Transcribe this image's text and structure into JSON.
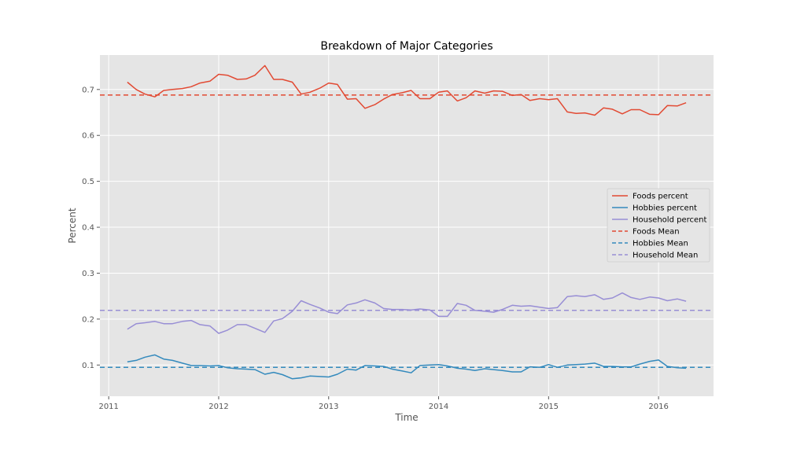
{
  "chart_data": {
    "type": "line",
    "title": "Breakdown of Major Categories",
    "xlabel": "Time",
    "ylabel": "Percent",
    "xlim": [
      2010.92,
      2016.5
    ],
    "ylim": [
      0.032,
      0.775
    ],
    "x_ticks": [
      2011,
      2012,
      2013,
      2014,
      2015,
      2016
    ],
    "x_tick_labels": [
      "2011",
      "2012",
      "2013",
      "2014",
      "2015",
      "2016"
    ],
    "y_ticks": [
      0.1,
      0.2,
      0.3,
      0.4,
      0.5,
      0.6,
      0.7
    ],
    "y_tick_labels": [
      "0.1",
      "0.2",
      "0.3",
      "0.4",
      "0.5",
      "0.6",
      "0.7"
    ],
    "grid": true,
    "legend_position": "center-right",
    "x": [
      2011.17,
      2011.25,
      2011.33,
      2011.42,
      2011.5,
      2011.58,
      2011.67,
      2011.75,
      2011.83,
      2011.92,
      2012.0,
      2012.08,
      2012.17,
      2012.25,
      2012.33,
      2012.42,
      2012.5,
      2012.58,
      2012.67,
      2012.75,
      2012.83,
      2012.92,
      2013.0,
      2013.08,
      2013.17,
      2013.25,
      2013.33,
      2013.42,
      2013.5,
      2013.58,
      2013.67,
      2013.75,
      2013.83,
      2013.92,
      2014.0,
      2014.08,
      2014.17,
      2014.25,
      2014.33,
      2014.42,
      2014.5,
      2014.58,
      2014.67,
      2014.75,
      2014.83,
      2014.92,
      2015.0,
      2015.08,
      2015.17,
      2015.25,
      2015.33,
      2015.42,
      2015.5,
      2015.58,
      2015.67,
      2015.75,
      2015.83,
      2015.92,
      2016.0,
      2016.08,
      2016.17,
      2016.25
    ],
    "series": [
      {
        "name": "Foods percent",
        "color": "#E24A33",
        "style": "solid",
        "values": [
          0.716,
          0.7,
          0.69,
          0.684,
          0.698,
          0.7,
          0.702,
          0.706,
          0.714,
          0.718,
          0.733,
          0.731,
          0.722,
          0.723,
          0.731,
          0.752,
          0.722,
          0.722,
          0.716,
          0.69,
          0.694,
          0.703,
          0.714,
          0.711,
          0.679,
          0.68,
          0.659,
          0.667,
          0.679,
          0.689,
          0.693,
          0.698,
          0.68,
          0.68,
          0.694,
          0.697,
          0.675,
          0.682,
          0.697,
          0.692,
          0.697,
          0.696,
          0.687,
          0.689,
          0.676,
          0.68,
          0.678,
          0.68,
          0.651,
          0.648,
          0.649,
          0.644,
          0.66,
          0.657,
          0.647,
          0.656,
          0.656,
          0.646,
          0.645,
          0.665,
          0.664,
          0.671
        ]
      },
      {
        "name": "Hobbies percent",
        "color": "#348ABD",
        "style": "solid",
        "values": [
          0.107,
          0.11,
          0.117,
          0.122,
          0.113,
          0.11,
          0.104,
          0.099,
          0.099,
          0.098,
          0.099,
          0.094,
          0.092,
          0.091,
          0.09,
          0.08,
          0.084,
          0.079,
          0.07,
          0.072,
          0.076,
          0.075,
          0.074,
          0.08,
          0.091,
          0.089,
          0.099,
          0.098,
          0.097,
          0.091,
          0.087,
          0.083,
          0.099,
          0.1,
          0.101,
          0.098,
          0.093,
          0.091,
          0.088,
          0.092,
          0.09,
          0.088,
          0.085,
          0.085,
          0.096,
          0.095,
          0.101,
          0.095,
          0.1,
          0.101,
          0.102,
          0.104,
          0.097,
          0.097,
          0.096,
          0.096,
          0.102,
          0.108,
          0.111,
          0.097,
          0.094,
          0.093
        ]
      },
      {
        "name": "Household percent",
        "color": "#988ED5",
        "style": "solid",
        "values": [
          0.178,
          0.19,
          0.192,
          0.195,
          0.19,
          0.19,
          0.195,
          0.197,
          0.188,
          0.185,
          0.169,
          0.176,
          0.188,
          0.188,
          0.18,
          0.171,
          0.196,
          0.201,
          0.217,
          0.24,
          0.232,
          0.224,
          0.215,
          0.212,
          0.231,
          0.235,
          0.242,
          0.235,
          0.223,
          0.221,
          0.221,
          0.22,
          0.222,
          0.22,
          0.206,
          0.206,
          0.234,
          0.23,
          0.219,
          0.217,
          0.215,
          0.221,
          0.23,
          0.228,
          0.229,
          0.226,
          0.223,
          0.225,
          0.249,
          0.251,
          0.249,
          0.253,
          0.243,
          0.246,
          0.257,
          0.247,
          0.243,
          0.248,
          0.246,
          0.24,
          0.244,
          0.239
        ]
      },
      {
        "name": "Foods Mean",
        "color": "#E24A33",
        "style": "dashed",
        "value": 0.688
      },
      {
        "name": "Hobbies Mean",
        "color": "#348ABD",
        "style": "dashed",
        "value": 0.095
      },
      {
        "name": "Household Mean",
        "color": "#988ED5",
        "style": "dashed",
        "value": 0.219
      }
    ]
  }
}
